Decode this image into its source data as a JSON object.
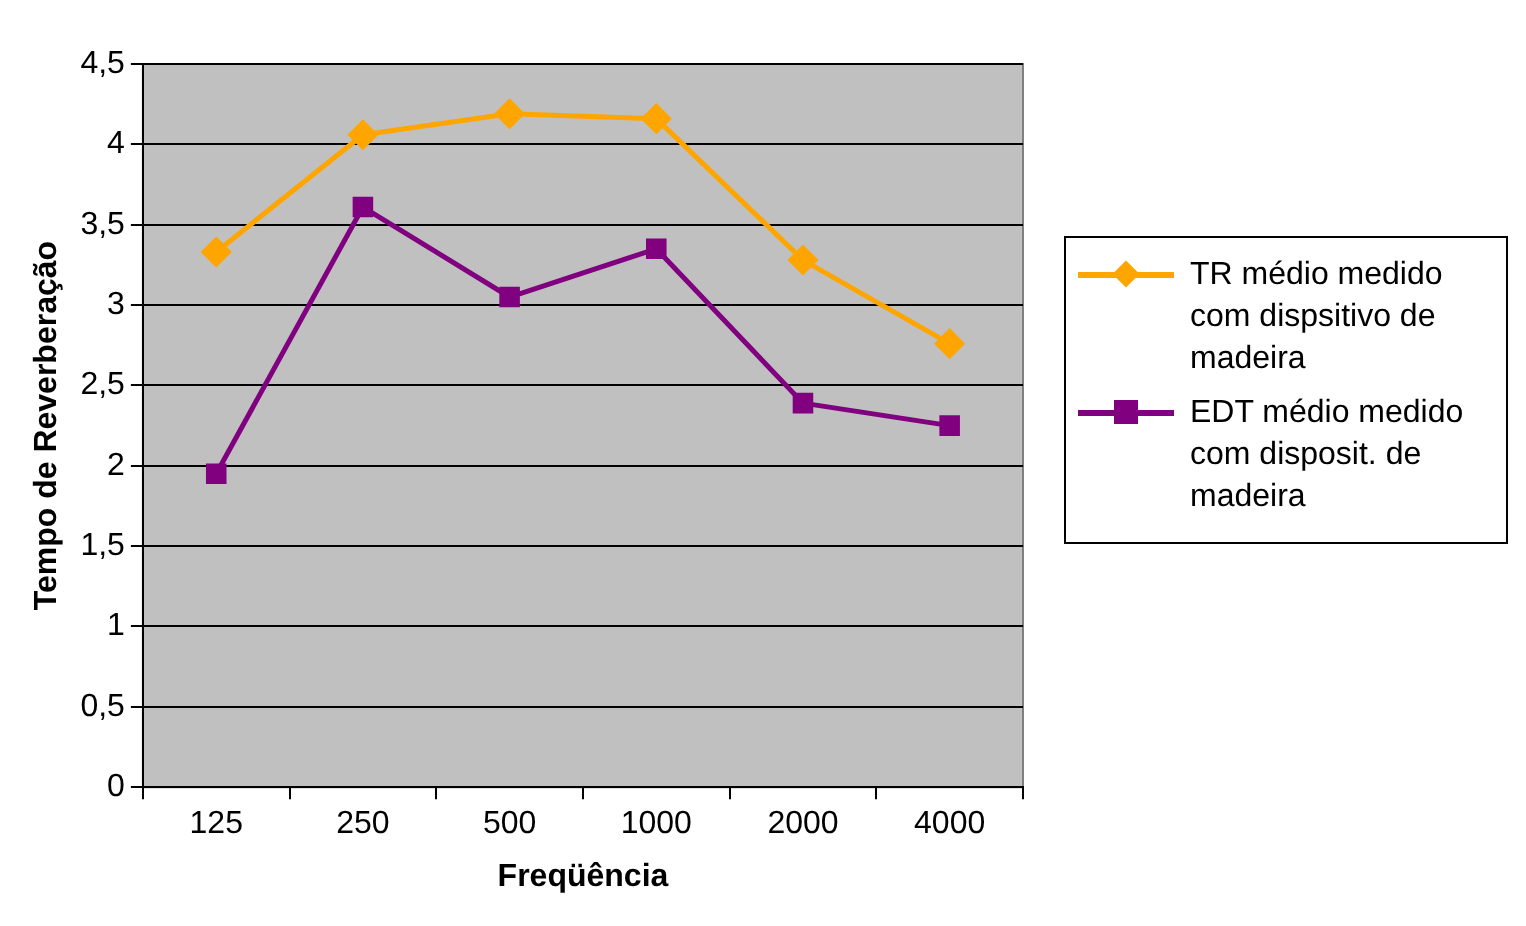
{
  "chart_data": {
    "type": "line",
    "xlabel": "Freqüência",
    "ylabel": "Tempo de Reverberação",
    "categories": [
      "125",
      "250",
      "500",
      "1000",
      "2000",
      "4000"
    ],
    "series": [
      {
        "name": "TR médio medido com dispsitivo de madeira",
        "color": "#ffa500",
        "marker": "diamond",
        "values": [
          3.33,
          4.06,
          4.19,
          4.16,
          3.28,
          2.76
        ]
      },
      {
        "name": "EDT médio medido com disposit. de madeira",
        "color": "#800080",
        "marker": "square",
        "values": [
          1.95,
          3.61,
          3.05,
          3.35,
          2.39,
          2.25
        ]
      }
    ],
    "ylim": [
      0,
      4.5
    ],
    "yticks": [
      {
        "value": 0,
        "label": "0"
      },
      {
        "value": 0.5,
        "label": "0,5"
      },
      {
        "value": 1,
        "label": "1"
      },
      {
        "value": 1.5,
        "label": "1,5"
      },
      {
        "value": 2,
        "label": "2"
      },
      {
        "value": 2.5,
        "label": "2,5"
      },
      {
        "value": 3,
        "label": "3"
      },
      {
        "value": 3.5,
        "label": "3,5"
      },
      {
        "value": 4,
        "label": "4"
      },
      {
        "value": 4.5,
        "label": "4,5"
      }
    ],
    "grid": "y",
    "legend": "right"
  }
}
